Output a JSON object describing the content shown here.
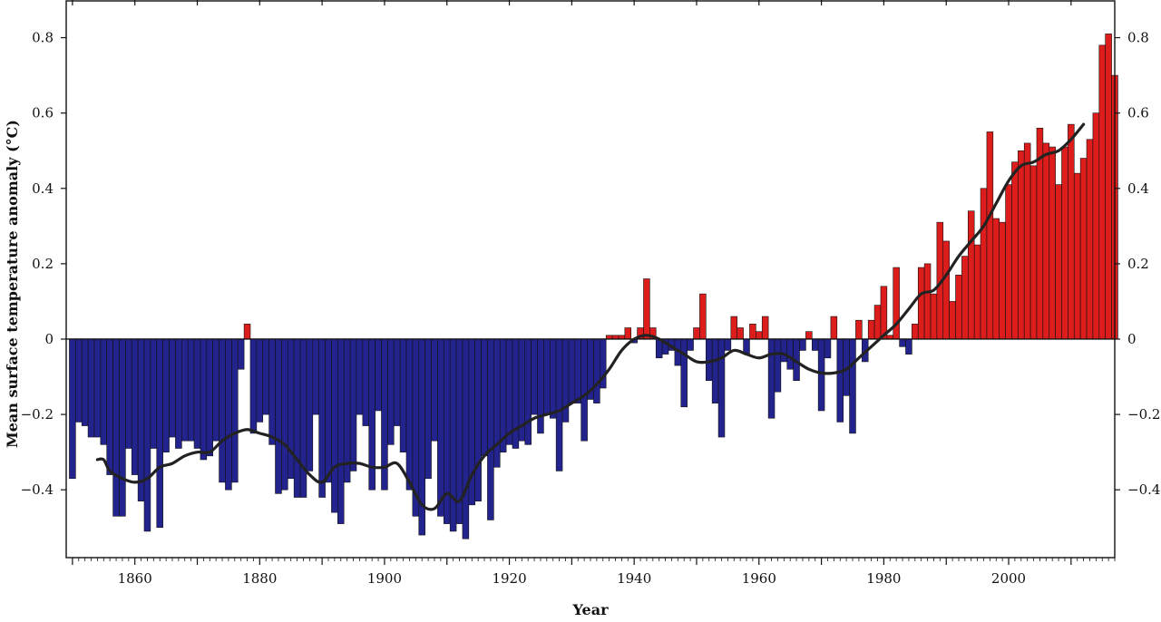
{
  "chart_data": {
    "type": "bar",
    "title": "",
    "xlabel": "Year",
    "ylabel": "Mean surface temperature anomaly (°C)",
    "xlim": [
      1849,
      2017
    ],
    "ylim": [
      -0.58,
      0.9
    ],
    "grid": false,
    "legend": "none",
    "x_ticks": [
      1860,
      1880,
      1900,
      1920,
      1940,
      1960,
      1980,
      2000
    ],
    "y_ticks": [
      -0.4,
      -0.2,
      0,
      0.2,
      0.4,
      0.6,
      0.8
    ],
    "y_tick_labels": [
      "−0.4",
      "−0.2",
      "0",
      "0.2",
      "0.4",
      "0.6",
      "0.8"
    ],
    "colors": {
      "positive": "#dd1c1c",
      "negative": "#23238e",
      "smooth": "#222222",
      "bar_edge": "#111111"
    },
    "series": [
      {
        "type": "bar",
        "x_start": 1850,
        "values": [
          -0.37,
          -0.22,
          -0.23,
          -0.26,
          -0.26,
          -0.28,
          -0.36,
          -0.47,
          -0.47,
          -0.29,
          -0.36,
          -0.43,
          -0.51,
          -0.29,
          -0.5,
          -0.3,
          -0.26,
          -0.29,
          -0.27,
          -0.27,
          -0.29,
          -0.32,
          -0.31,
          -0.27,
          -0.38,
          -0.4,
          -0.38,
          -0.08,
          0.04,
          -0.25,
          -0.22,
          -0.2,
          -0.28,
          -0.41,
          -0.4,
          -0.37,
          -0.42,
          -0.42,
          -0.35,
          -0.2,
          -0.42,
          -0.38,
          -0.46,
          -0.49,
          -0.38,
          -0.35,
          -0.2,
          -0.23,
          -0.4,
          -0.19,
          -0.4,
          -0.28,
          -0.23,
          -0.3,
          -0.4,
          -0.47,
          -0.52,
          -0.37,
          -0.27,
          -0.47,
          -0.49,
          -0.51,
          -0.49,
          -0.53,
          -0.44,
          -0.43,
          -0.31,
          -0.48,
          -0.34,
          -0.3,
          -0.28,
          -0.29,
          -0.27,
          -0.28,
          -0.2,
          -0.25,
          -0.2,
          -0.21,
          -0.35,
          -0.22,
          -0.17,
          -0.17,
          -0.27,
          -0.16,
          -0.17,
          -0.13,
          0.01,
          0.01,
          0.01,
          0.03,
          -0.01,
          0.03,
          0.16,
          0.03,
          -0.05,
          -0.04,
          -0.03,
          -0.07,
          -0.18,
          -0.03,
          0.03,
          0.12,
          -0.11,
          -0.17,
          -0.26,
          -0.03,
          0.06,
          0.03,
          -0.04,
          0.04,
          0.02,
          0.06,
          -0.21,
          -0.14,
          -0.06,
          -0.08,
          -0.11,
          -0.03,
          0.02,
          -0.03,
          -0.19,
          -0.05,
          0.06,
          -0.22,
          -0.15,
          -0.25,
          0.05,
          -0.06,
          0.05,
          0.09,
          0.14,
          0.01,
          0.19,
          -0.02,
          -0.04,
          0.04,
          0.19,
          0.2,
          0.12,
          0.31,
          0.26,
          0.1,
          0.17,
          0.22,
          0.34,
          0.25,
          0.4,
          0.55,
          0.32,
          0.31,
          0.41,
          0.47,
          0.5,
          0.52,
          0.46,
          0.56,
          0.52,
          0.51,
          0.41,
          0.51,
          0.57,
          0.44,
          0.48,
          0.53,
          0.6,
          0.78,
          0.81,
          0.7
        ]
      },
      {
        "type": "line",
        "name": "",
        "x": [
          1854,
          1855,
          1856,
          1858,
          1860,
          1862,
          1864,
          1866,
          1868,
          1870,
          1872,
          1874,
          1876,
          1878,
          1880,
          1882,
          1884,
          1886,
          1888,
          1890,
          1892,
          1894,
          1896,
          1898,
          1900,
          1902,
          1904,
          1906,
          1908,
          1910,
          1912,
          1914,
          1916,
          1918,
          1920,
          1922,
          1924,
          1926,
          1928,
          1930,
          1932,
          1934,
          1936,
          1938,
          1940,
          1942,
          1944,
          1946,
          1948,
          1950,
          1952,
          1954,
          1956,
          1958,
          1960,
          1962,
          1964,
          1966,
          1968,
          1970,
          1972,
          1974,
          1976,
          1978,
          1980,
          1982,
          1984,
          1986,
          1988,
          1990,
          1992,
          1994,
          1996,
          1998,
          2000,
          2002,
          2004,
          2006,
          2008,
          2010,
          2012
        ],
        "y": [
          -0.32,
          -0.32,
          -0.35,
          -0.37,
          -0.38,
          -0.37,
          -0.34,
          -0.33,
          -0.31,
          -0.3,
          -0.3,
          -0.27,
          -0.25,
          -0.24,
          -0.25,
          -0.26,
          -0.28,
          -0.32,
          -0.36,
          -0.38,
          -0.34,
          -0.33,
          -0.33,
          -0.34,
          -0.34,
          -0.33,
          -0.38,
          -0.44,
          -0.45,
          -0.41,
          -0.43,
          -0.36,
          -0.31,
          -0.28,
          -0.25,
          -0.23,
          -0.21,
          -0.2,
          -0.19,
          -0.17,
          -0.15,
          -0.12,
          -0.08,
          -0.03,
          0.0,
          0.01,
          0.0,
          -0.02,
          -0.04,
          -0.06,
          -0.06,
          -0.05,
          -0.03,
          -0.04,
          -0.05,
          -0.04,
          -0.04,
          -0.06,
          -0.08,
          -0.09,
          -0.09,
          -0.08,
          -0.05,
          -0.02,
          0.01,
          0.04,
          0.08,
          0.12,
          0.13,
          0.17,
          0.22,
          0.26,
          0.3,
          0.36,
          0.42,
          0.46,
          0.47,
          0.49,
          0.5,
          0.53,
          0.57
        ]
      }
    ]
  }
}
